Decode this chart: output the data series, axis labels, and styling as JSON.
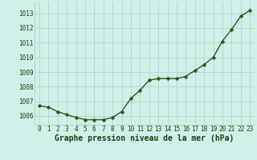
{
  "x": [
    0,
    1,
    2,
    3,
    4,
    5,
    6,
    7,
    8,
    9,
    10,
    11,
    12,
    13,
    14,
    15,
    16,
    17,
    18,
    19,
    20,
    21,
    22,
    23
  ],
  "y": [
    1006.7,
    1006.6,
    1006.3,
    1006.1,
    1005.9,
    1005.75,
    1005.75,
    1005.75,
    1005.9,
    1006.3,
    1007.2,
    1007.75,
    1008.45,
    1008.55,
    1008.55,
    1008.55,
    1008.7,
    1009.1,
    1009.5,
    1010.0,
    1011.1,
    1011.9,
    1012.8,
    1013.2
  ],
  "line_color": "#2d5a1b",
  "marker": "D",
  "marker_size": 2.5,
  "linewidth": 1.0,
  "bg_color": "#cef0e8",
  "grid_color": "#aed8cc",
  "xlabel": "Graphe pression niveau de la mer (hPa)",
  "xlabel_color": "#1a4010",
  "xlabel_fontsize": 7.0,
  "xtick_fontsize": 5.5,
  "ytick_fontsize": 5.5,
  "ylim_min": 1005.4,
  "ylim_max": 1013.8,
  "yticks": [
    1006,
    1007,
    1008,
    1009,
    1010,
    1011,
    1012,
    1013
  ],
  "tick_color": "#1a4010"
}
